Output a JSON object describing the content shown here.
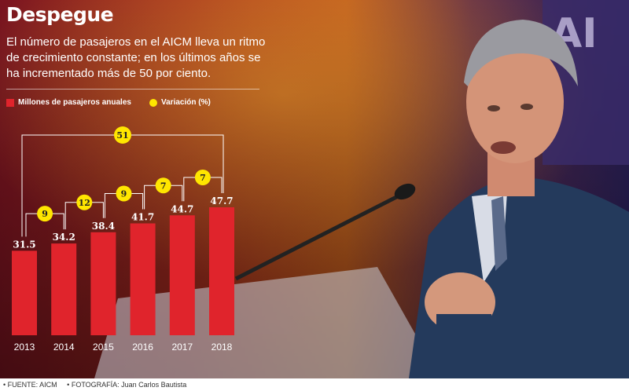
{
  "title": "Despegue",
  "subtitle": "El número de pasajeros en el AICM lleva un ritmo de crecimiento constante; en los últimos años se ha incrementado más de 50 por ciento.",
  "legend": {
    "bars": "Millones de pasajeros anuales",
    "variation": "Variación (%)"
  },
  "footer": {
    "source": "• FUENTE: AICM",
    "photo": "• FOTOGRAFÍA: Juan Carlos Bautista"
  },
  "colors": {
    "bar": "#e0242c",
    "variation": "#ffe600"
  },
  "chart_data": {
    "type": "bar",
    "categories": [
      "2013",
      "2014",
      "2015",
      "2016",
      "2017",
      "2018"
    ],
    "values": [
      31.5,
      34.2,
      38.4,
      41.7,
      44.7,
      47.7
    ],
    "value_labels": [
      "31.5",
      "34.2",
      "38.4",
      "41.7",
      "44.7",
      "47.7"
    ],
    "variation": [
      {
        "from": "2013",
        "to": "2014",
        "value": 9
      },
      {
        "from": "2014",
        "to": "2015",
        "value": 12
      },
      {
        "from": "2015",
        "to": "2016",
        "value": 9
      },
      {
        "from": "2016",
        "to": "2017",
        "value": 7
      },
      {
        "from": "2017",
        "to": "2018",
        "value": 7
      }
    ],
    "total_variation": {
      "from": "2013",
      "to": "2018",
      "value": 51
    },
    "ylim": [
      0,
      48
    ],
    "grid": false,
    "legend": "top-left"
  }
}
